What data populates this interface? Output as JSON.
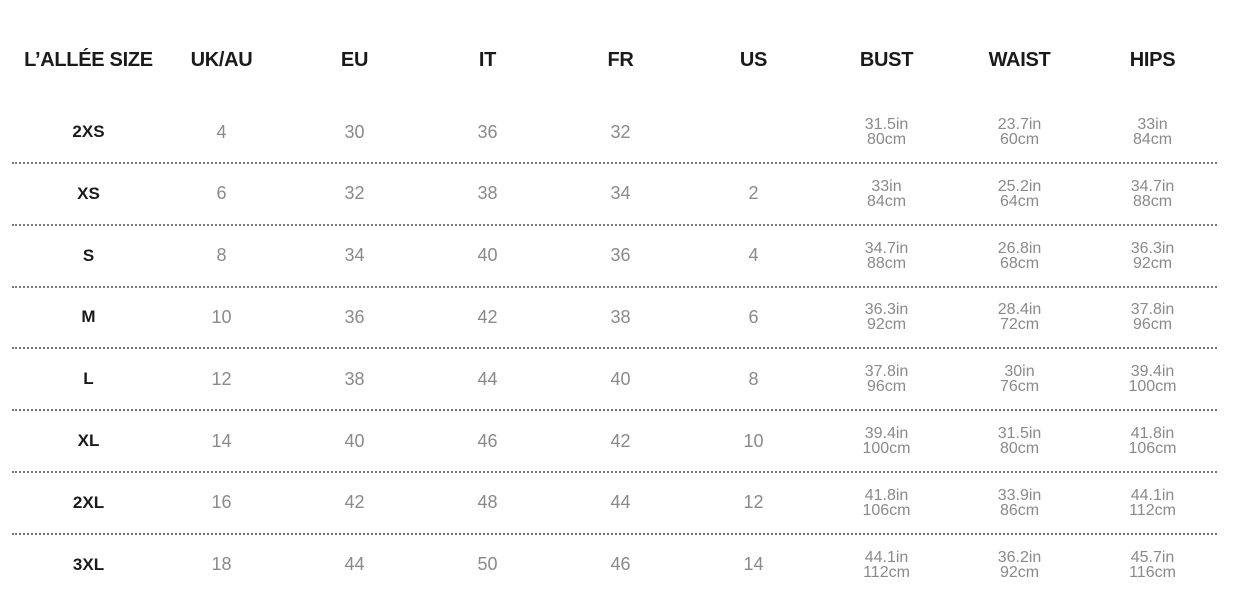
{
  "headers": [
    "L’ALLÉE SIZE",
    "UK/AU",
    "EU",
    "IT",
    "FR",
    "US",
    "BUST",
    "WAIST",
    "HIPS"
  ],
  "rows": [
    {
      "size": "2XS",
      "uk": "4",
      "eu": "30",
      "it": "36",
      "fr": "32",
      "us": "",
      "bust": [
        "31.5in",
        "80cm"
      ],
      "waist": [
        "23.7in",
        "60cm"
      ],
      "hips": [
        "33in",
        "84cm"
      ]
    },
    {
      "size": "XS",
      "uk": "6",
      "eu": "32",
      "it": "38",
      "fr": "34",
      "us": "2",
      "bust": [
        "33in",
        "84cm"
      ],
      "waist": [
        "25.2in",
        "64cm"
      ],
      "hips": [
        "34.7in",
        "88cm"
      ]
    },
    {
      "size": "S",
      "uk": "8",
      "eu": "34",
      "it": "40",
      "fr": "36",
      "us": "4",
      "bust": [
        "34.7in",
        "88cm"
      ],
      "waist": [
        "26.8in",
        "68cm"
      ],
      "hips": [
        "36.3in",
        "92cm"
      ]
    },
    {
      "size": "M",
      "uk": "10",
      "eu": "36",
      "it": "42",
      "fr": "38",
      "us": "6",
      "bust": [
        "36.3in",
        "92cm"
      ],
      "waist": [
        "28.4in",
        "72cm"
      ],
      "hips": [
        "37.8in",
        "96cm"
      ]
    },
    {
      "size": "L",
      "uk": "12",
      "eu": "38",
      "it": "44",
      "fr": "40",
      "us": "8",
      "bust": [
        "37.8in",
        "96cm"
      ],
      "waist": [
        "30in",
        "76cm"
      ],
      "hips": [
        "39.4in",
        "100cm"
      ]
    },
    {
      "size": "XL",
      "uk": "14",
      "eu": "40",
      "it": "46",
      "fr": "42",
      "us": "10",
      "bust": [
        "39.4in",
        "100cm"
      ],
      "waist": [
        "31.5in",
        "80cm"
      ],
      "hips": [
        "41.8in",
        "106cm"
      ]
    },
    {
      "size": "2XL",
      "uk": "16",
      "eu": "42",
      "it": "48",
      "fr": "44",
      "us": "12",
      "bust": [
        "41.8in",
        "106cm"
      ],
      "waist": [
        "33.9in",
        "86cm"
      ],
      "hips": [
        "44.1in",
        "112cm"
      ]
    },
    {
      "size": "3XL",
      "uk": "18",
      "eu": "44",
      "it": "50",
      "fr": "46",
      "us": "14",
      "bust": [
        "44.1in",
        "112cm"
      ],
      "waist": [
        "36.2in",
        "92cm"
      ],
      "hips": [
        "45.7in",
        "116cm"
      ]
    }
  ]
}
